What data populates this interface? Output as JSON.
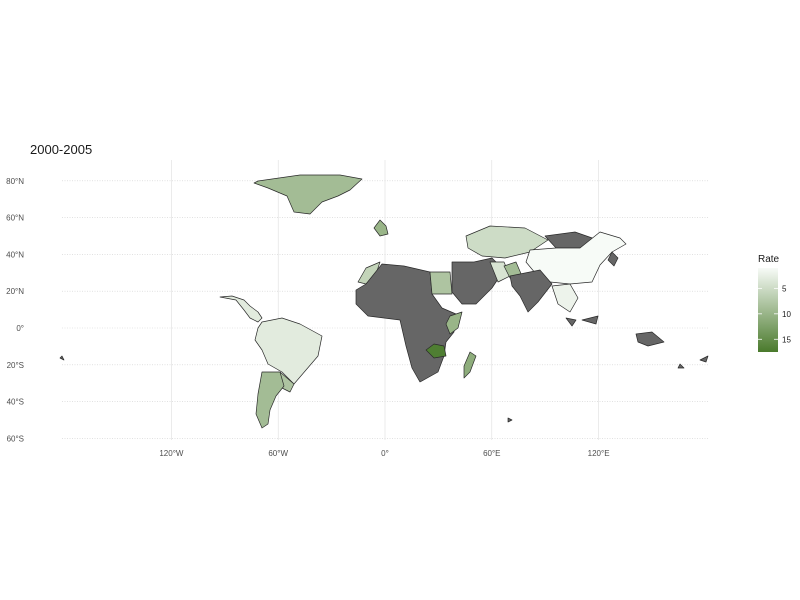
{
  "title": "2000-2005",
  "legend": {
    "title": "Rate",
    "ticks": [
      5,
      10,
      15
    ],
    "range": [
      1,
      17.5
    ],
    "colors": {
      "low": "#f7fbf7",
      "high": "#4a7a2c",
      "na": "#666666"
    }
  },
  "axes": {
    "x_ticks": [
      {
        "lon": -120,
        "label": "120°W"
      },
      {
        "lon": -60,
        "label": "60°W"
      },
      {
        "lon": 0,
        "label": "0°"
      },
      {
        "lon": 60,
        "label": "60°E"
      },
      {
        "lon": 120,
        "label": "120°E"
      }
    ],
    "y_ticks": [
      {
        "lat": 80,
        "label": "80°N"
      },
      {
        "lat": 60,
        "label": "60°N"
      },
      {
        "lat": 40,
        "label": "40°N"
      },
      {
        "lat": 20,
        "label": "20°N"
      },
      {
        "lat": 0,
        "label": "0°"
      },
      {
        "lat": -20,
        "label": "20°S"
      },
      {
        "lat": -40,
        "label": "40°S"
      },
      {
        "lat": -60,
        "label": "60°S"
      }
    ]
  },
  "regions": [
    {
      "id": "greenland",
      "rate": 9
    },
    {
      "id": "south-america-north",
      "rate": 3
    },
    {
      "id": "southern-cone",
      "rate": 9
    },
    {
      "id": "paraguay-uruguay",
      "rate": 8
    },
    {
      "id": "central-america",
      "rate": 3
    },
    {
      "id": "united-kingdom",
      "rate": 10
    },
    {
      "id": "morocco",
      "rate": 6
    },
    {
      "id": "egypt",
      "rate": 8
    },
    {
      "id": "ethiopia-kenya",
      "rate": 10
    },
    {
      "id": "zambia",
      "rate": 17
    },
    {
      "id": "madagascar",
      "rate": 11
    },
    {
      "id": "russia-kazakhstan",
      "rate": 5
    },
    {
      "id": "china",
      "rate": 1
    },
    {
      "id": "iran",
      "rate": 4
    },
    {
      "id": "afghanistan",
      "rate": 9
    },
    {
      "id": "southeast-asia",
      "rate": 2
    },
    {
      "id": "africa-na"
    },
    {
      "id": "middle-east-na"
    },
    {
      "id": "south-asia-na"
    },
    {
      "id": "mongolia-na"
    },
    {
      "id": "east-asia-na"
    },
    {
      "id": "maritime-asia-na"
    },
    {
      "id": "pacific-na"
    }
  ]
}
